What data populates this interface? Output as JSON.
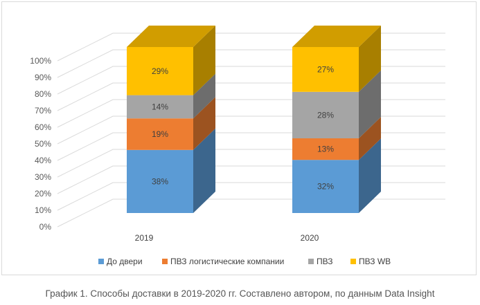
{
  "chart_data": {
    "type": "bar",
    "stacked": true,
    "three_d": true,
    "categories": [
      "2019",
      "2020"
    ],
    "series": [
      {
        "name": "До двери",
        "values": [
          38,
          32
        ],
        "color": "#5B9BD5",
        "label_suffix": "%"
      },
      {
        "name": "ПВЗ логистические компании",
        "values": [
          19,
          13
        ],
        "color": "#ED7D31",
        "label_suffix": "%"
      },
      {
        "name": "ПВЗ",
        "values": [
          14,
          28
        ],
        "color": "#A5A5A5",
        "label_suffix": "%"
      },
      {
        "name": "ПВЗ WB",
        "values": [
          29,
          27
        ],
        "color": "#FFC000",
        "label_suffix": "%"
      }
    ],
    "y_ticks": [
      "0%",
      "10%",
      "20%",
      "30%",
      "40%",
      "50%",
      "60%",
      "70%",
      "80%",
      "90%",
      "100%"
    ],
    "ylim": [
      0,
      100
    ],
    "legend_position": "bottom",
    "grid": true
  },
  "caption": "График 1. Способы доставки в 2019-2020 гг. Составлено автором, по данным Data Insight"
}
